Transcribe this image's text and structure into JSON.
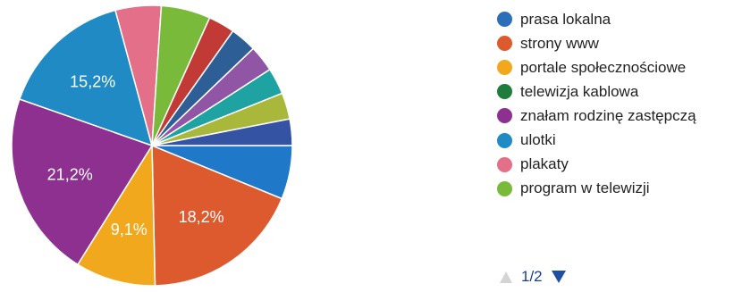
{
  "chart_data": {
    "type": "pie",
    "slices": [
      {
        "label": "",
        "value": 6.1,
        "color": "#1f78c8",
        "data_label": ""
      },
      {
        "label": "strony www",
        "value": 18.2,
        "color": "#dc5a2e",
        "data_label": "18,2%"
      },
      {
        "label": "portale społecznościowe",
        "value": 9.1,
        "color": "#f2a81d",
        "data_label": "9,1%"
      },
      {
        "label": "znałam rodzinę zastępczą",
        "value": 21.2,
        "color": "#8d3090",
        "data_label": "21,2%"
      },
      {
        "label": "ulotki",
        "value": 15.2,
        "color": "#1f8ac4",
        "data_label": "15,2%"
      },
      {
        "label": "plakaty",
        "value": 5.2,
        "color": "#e36f89",
        "data_label": ""
      },
      {
        "label": "program w telewizji",
        "value": 5.6,
        "color": "#7aba3a",
        "data_label": ""
      },
      {
        "label": "",
        "value": 3.0,
        "color": "#c23a35",
        "data_label": ""
      },
      {
        "label": "",
        "value": 3.0,
        "color": "#2d5e96",
        "data_label": ""
      },
      {
        "label": "",
        "value": 3.0,
        "color": "#9155a6",
        "data_label": ""
      },
      {
        "label": "",
        "value": 3.0,
        "color": "#1ea2a2",
        "data_label": ""
      },
      {
        "label": "",
        "value": 3.0,
        "color": "#a9b73a",
        "data_label": ""
      },
      {
        "label": "",
        "value": 3.0,
        "color": "#3553a3",
        "data_label": ""
      }
    ]
  },
  "legend": {
    "items": [
      {
        "label": "prasa lokalna",
        "color": "#2a6fb8"
      },
      {
        "label": "strony www",
        "color": "#dc5a2e"
      },
      {
        "label": "portale społecznościowe",
        "color": "#f2a81d"
      },
      {
        "label": "telewizja kablowa",
        "color": "#1e7d3c"
      },
      {
        "label": "znałam rodzinę zastępczą",
        "color": "#8d3090"
      },
      {
        "label": "ulotki",
        "color": "#1f8ac4"
      },
      {
        "label": "plakaty",
        "color": "#e36f89"
      },
      {
        "label": "program w telewizji",
        "color": "#7aba3a"
      }
    ]
  },
  "pager": {
    "text": "1/2",
    "prev_icon": "triangle-up-icon",
    "next_icon": "triangle-down-icon"
  }
}
